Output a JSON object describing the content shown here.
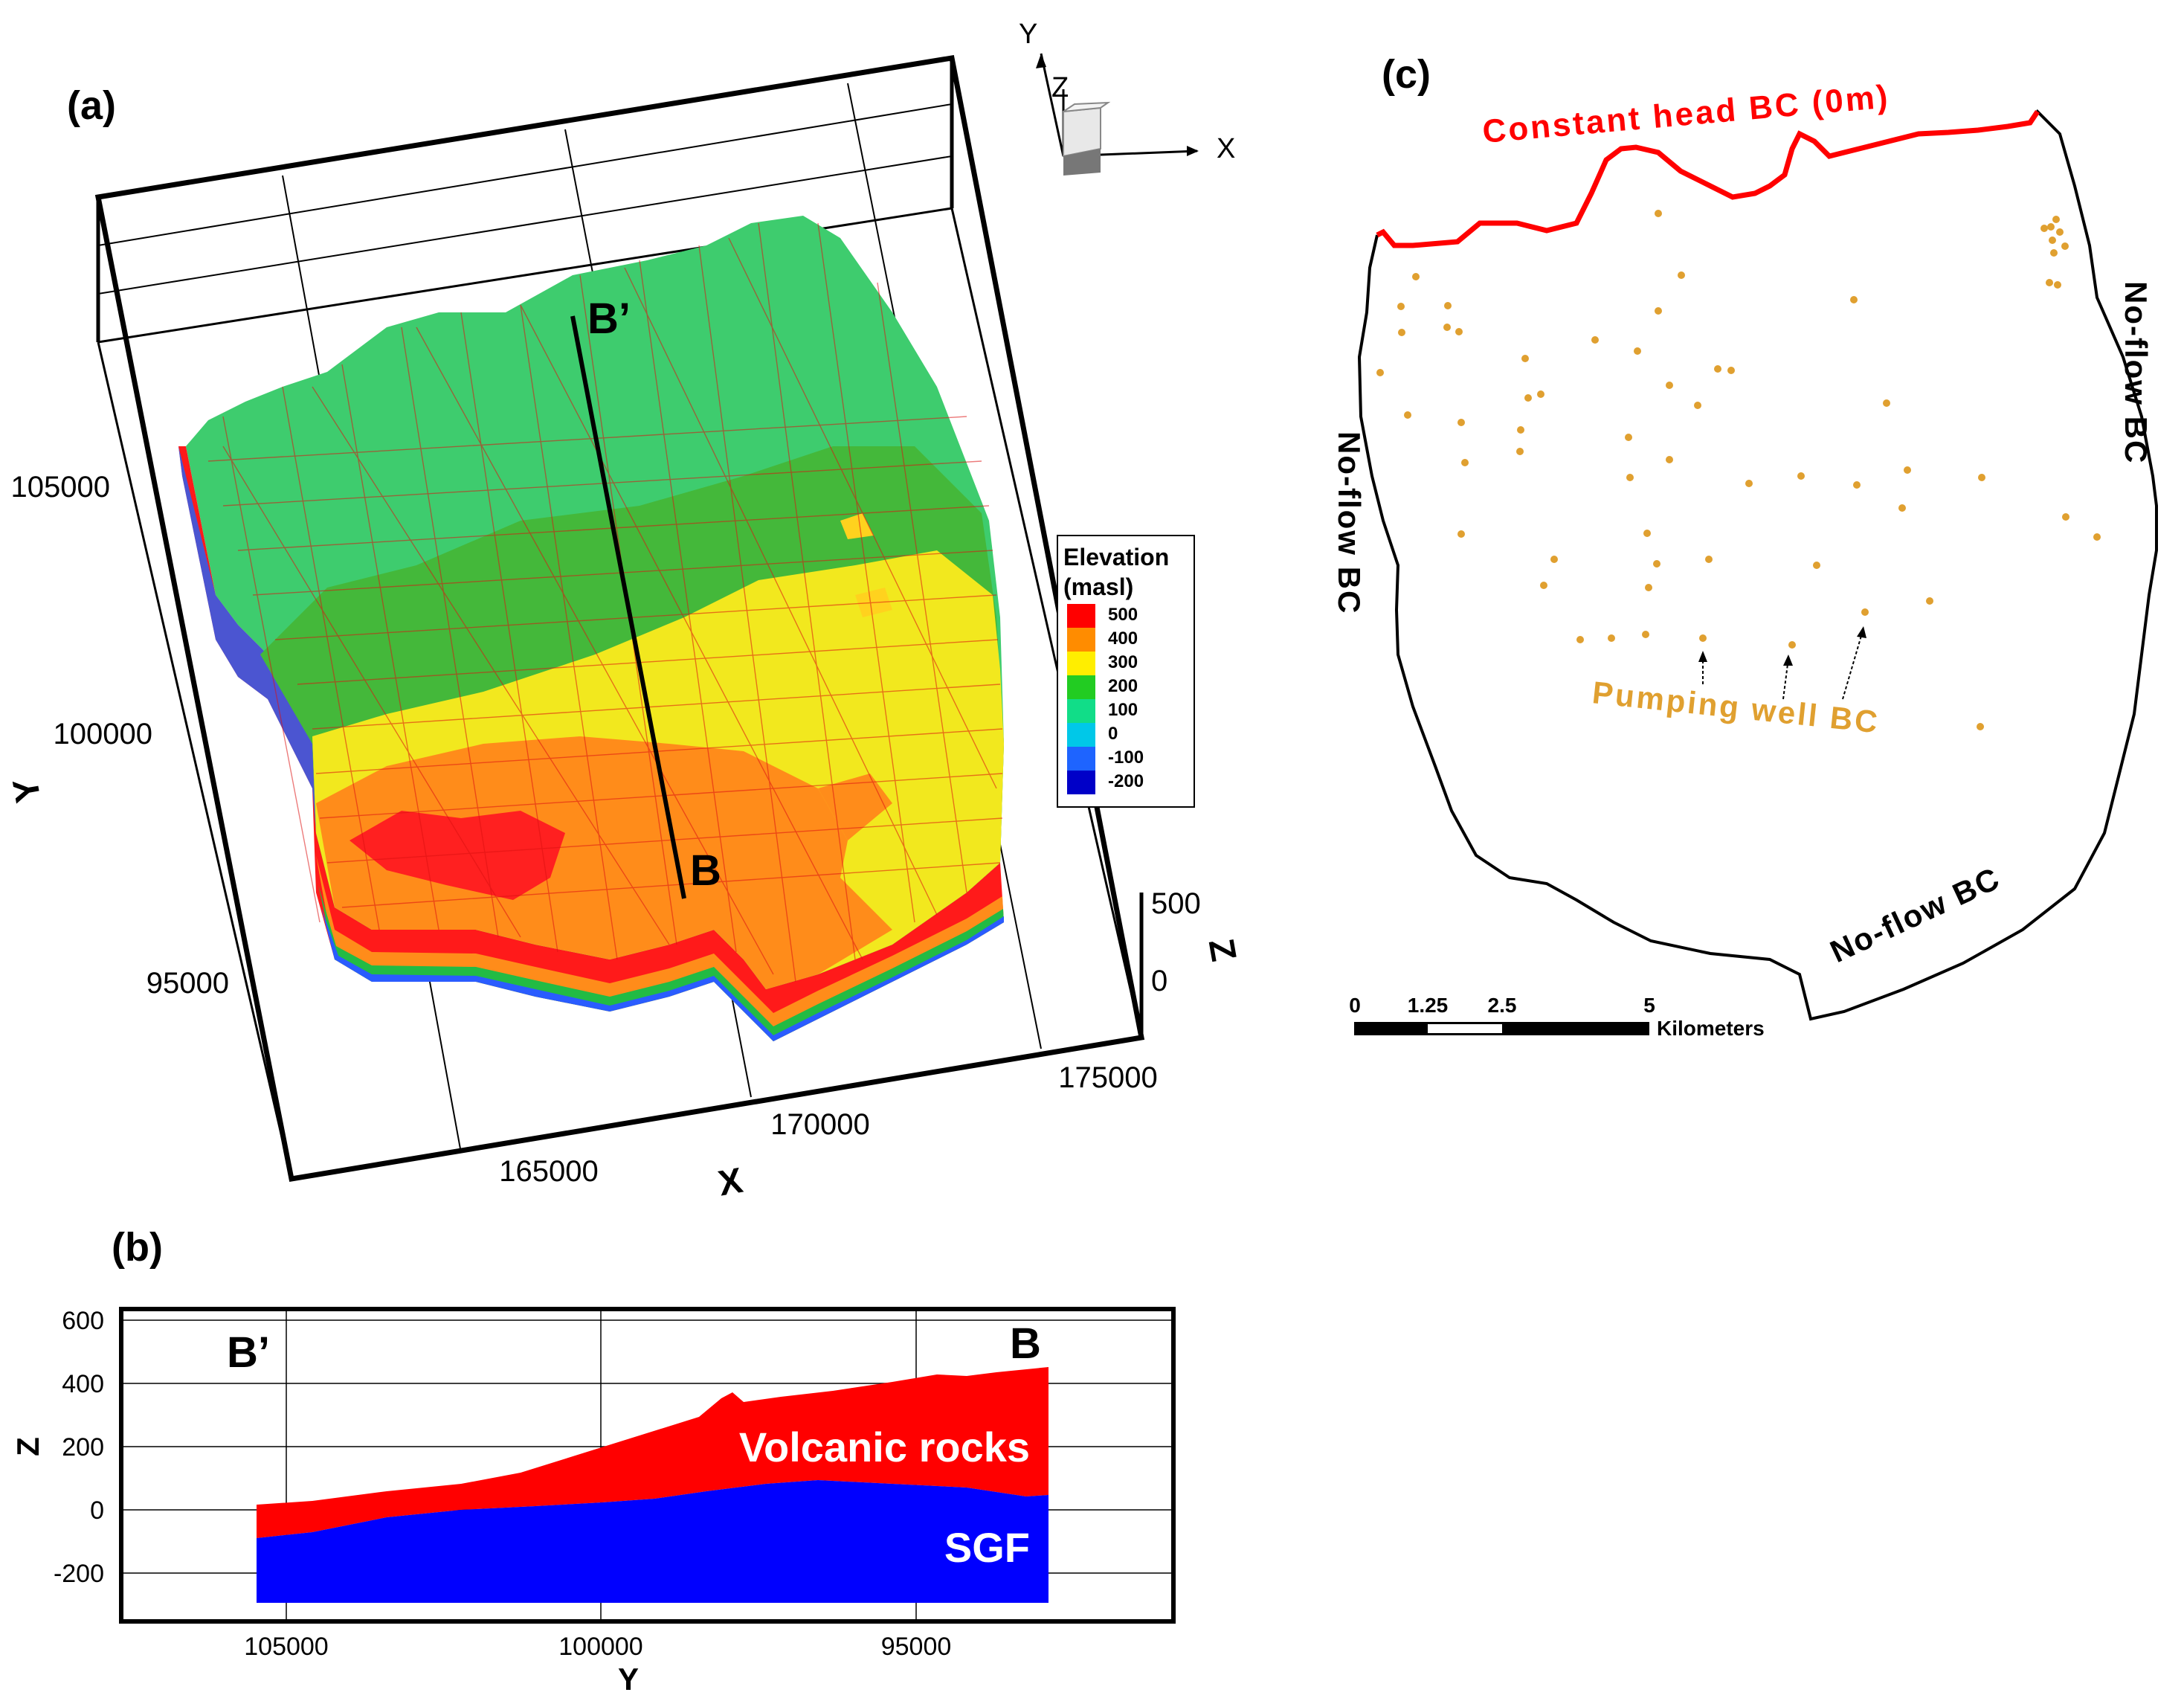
{
  "figure": {
    "panel_a": {
      "label": "(a)",
      "x_axis": {
        "title": "X",
        "ticks": [
          "165000",
          "170000",
          "175000"
        ]
      },
      "y_axis": {
        "title": "Y",
        "ticks": [
          "105000",
          "100000",
          "95000"
        ]
      },
      "z_axis": {
        "title": "Z",
        "ticks": [
          "500",
          "0"
        ]
      },
      "orientation_axes": {
        "x": "X",
        "y": "Y",
        "z": "Z"
      },
      "section_labels": {
        "start": "B’",
        "end": "B"
      },
      "legend": {
        "title_line1": "Elevation",
        "title_line2": "(masl)",
        "entries": [
          {
            "value": "500",
            "color": "#ff0000"
          },
          {
            "value": "400",
            "color": "#ff8c00"
          },
          {
            "value": "300",
            "color": "#ffee00"
          },
          {
            "value": "200",
            "color": "#22cc22"
          },
          {
            "value": "100",
            "color": "#11dd88"
          },
          {
            "value": "0",
            "color": "#00c8e8"
          },
          {
            "value": "-100",
            "color": "#1e64ff"
          },
          {
            "value": "-200",
            "color": "#0000c8"
          }
        ]
      }
    },
    "panel_b": {
      "label": "(b)",
      "x_axis": {
        "title": "Y",
        "ticks": [
          "105000",
          "100000",
          "95000"
        ]
      },
      "y_axis": {
        "title": "Z",
        "ticks": [
          "600",
          "400",
          "200",
          "0",
          "-200"
        ]
      },
      "section_labels": {
        "start": "B’",
        "end": "B"
      },
      "layers": [
        {
          "name": "Volcanic rocks",
          "color": "#ff0000"
        },
        {
          "name": "SGF",
          "color": "#0000ff"
        }
      ]
    },
    "panel_c": {
      "label": "(c)",
      "constant_head": "Constant head BC (0m)",
      "no_flow_left": "No-flow BC",
      "no_flow_right": "No-flow BC",
      "no_flow_bottom": "No-flow BC",
      "pumping": "Pumping well BC",
      "well_color": "#e0a030",
      "scale_bar": {
        "ticks": [
          "0",
          "1.25",
          "2.5",
          "5"
        ],
        "unit": "Kilometers"
      }
    }
  }
}
